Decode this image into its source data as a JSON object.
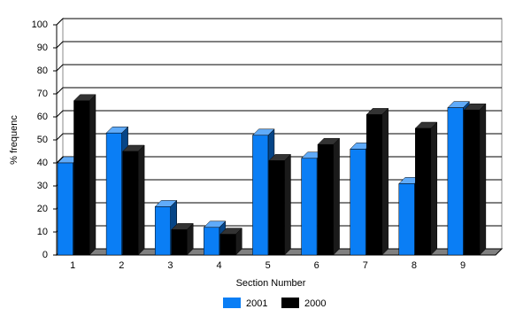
{
  "chart_data": {
    "type": "bar",
    "xlabel": "Section Number",
    "ylabel": "% frequenc",
    "categories": [
      "1",
      "2",
      "3",
      "4",
      "5",
      "6",
      "7",
      "8",
      "9"
    ],
    "series": [
      {
        "name": "2001",
        "color": "#0a7ef5",
        "values": [
          40,
          53,
          21,
          12,
          52,
          42,
          46,
          31,
          64
        ]
      },
      {
        "name": "2000",
        "color": "#000000",
        "values": [
          67,
          45,
          11,
          9,
          41,
          48,
          61,
          55,
          63
        ]
      }
    ],
    "ylim": [
      0,
      100
    ],
    "yticks": [
      0,
      10,
      20,
      30,
      40,
      50,
      60,
      70,
      80,
      90,
      100
    ],
    "grid": true,
    "legend": "bottom"
  }
}
